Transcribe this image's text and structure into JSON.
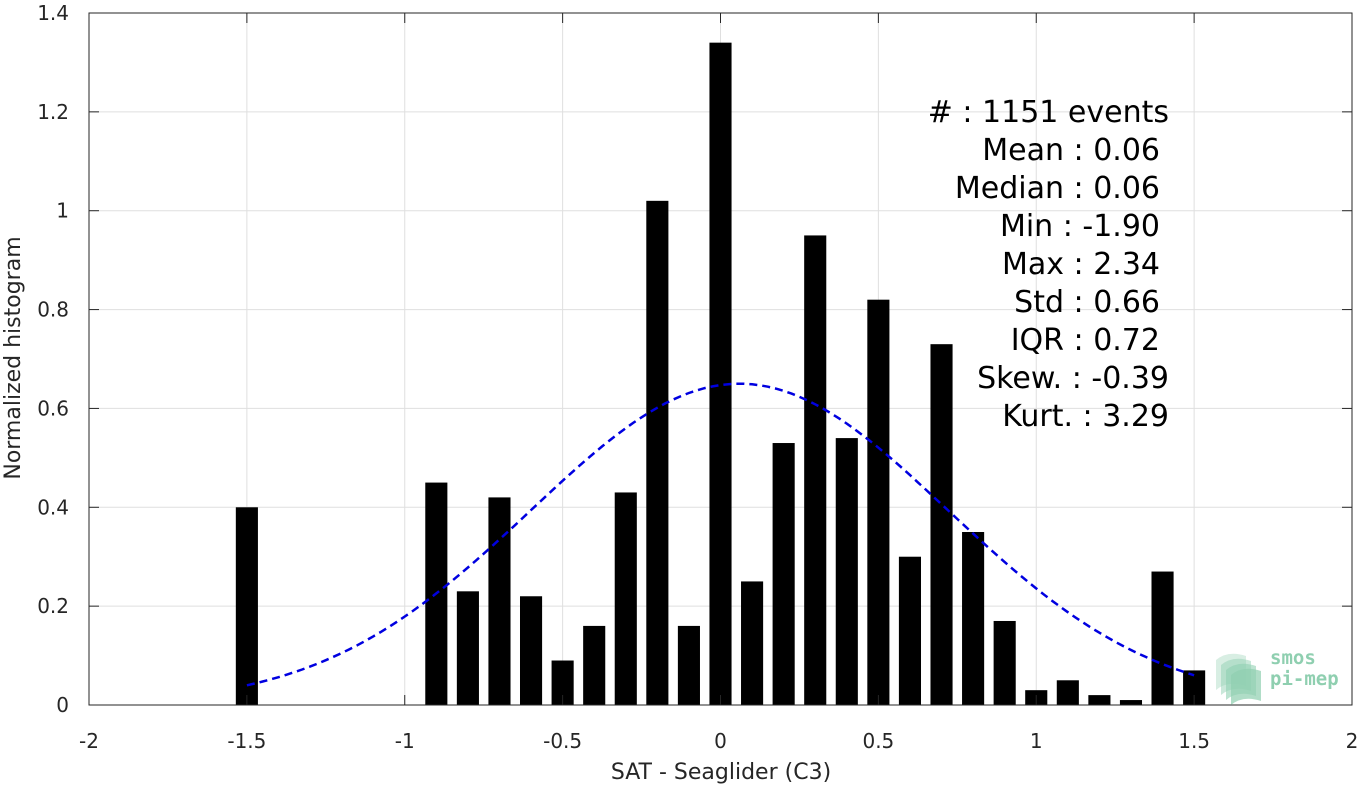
{
  "chart_data": {
    "type": "bar",
    "xlabel": "SAT - Seaglider (C3)",
    "ylabel": "Normalized histogram",
    "xlim": [
      -2,
      2
    ],
    "ylim": [
      0,
      1.4
    ],
    "grid": true,
    "xticks": [
      "-2",
      "-1.5",
      "-1",
      "-0.5",
      "0",
      "0.5",
      "1",
      "1.5",
      "2"
    ],
    "yticks": [
      "0",
      "0.2",
      "0.4",
      "0.6",
      "0.8",
      "1",
      "1.2",
      "1.4"
    ],
    "bar_color": "#000000",
    "bar_width": 0.07,
    "bars": [
      {
        "x": -1.5,
        "y": 0.4
      },
      {
        "x": -0.9,
        "y": 0.45
      },
      {
        "x": -0.8,
        "y": 0.23
      },
      {
        "x": -0.7,
        "y": 0.42
      },
      {
        "x": -0.6,
        "y": 0.22
      },
      {
        "x": -0.5,
        "y": 0.09
      },
      {
        "x": -0.4,
        "y": 0.16
      },
      {
        "x": -0.3,
        "y": 0.43
      },
      {
        "x": -0.2,
        "y": 1.02
      },
      {
        "x": -0.1,
        "y": 0.16
      },
      {
        "x": 0.0,
        "y": 1.34
      },
      {
        "x": 0.1,
        "y": 0.25
      },
      {
        "x": 0.2,
        "y": 0.53
      },
      {
        "x": 0.3,
        "y": 0.95
      },
      {
        "x": 0.4,
        "y": 0.54
      },
      {
        "x": 0.5,
        "y": 0.82
      },
      {
        "x": 0.6,
        "y": 0.3
      },
      {
        "x": 0.7,
        "y": 0.73
      },
      {
        "x": 0.8,
        "y": 0.35
      },
      {
        "x": 0.9,
        "y": 0.17
      },
      {
        "x": 1.0,
        "y": 0.03
      },
      {
        "x": 1.1,
        "y": 0.05
      },
      {
        "x": 1.2,
        "y": 0.02
      },
      {
        "x": 1.3,
        "y": 0.01
      },
      {
        "x": 1.4,
        "y": 0.27
      },
      {
        "x": 1.5,
        "y": 0.07
      }
    ],
    "fit_curve": {
      "style": "dashed",
      "color": "#0000e0",
      "mean": 0.06,
      "std": 0.66,
      "peak": 0.65,
      "x_range": [
        -1.5,
        1.5
      ]
    },
    "stats": [
      "#  : 1151 events",
      "Mean : 0.06",
      "Median : 0.06",
      "Min : -1.90",
      "Max : 2.34",
      "Std : 0.66",
      "IQR : 0.72",
      "Skew. : -0.39",
      "Kurt. : 3.29"
    ]
  },
  "logo": {
    "line1": "smos",
    "line2": "pi-mep",
    "color": "#8fcfb0"
  }
}
